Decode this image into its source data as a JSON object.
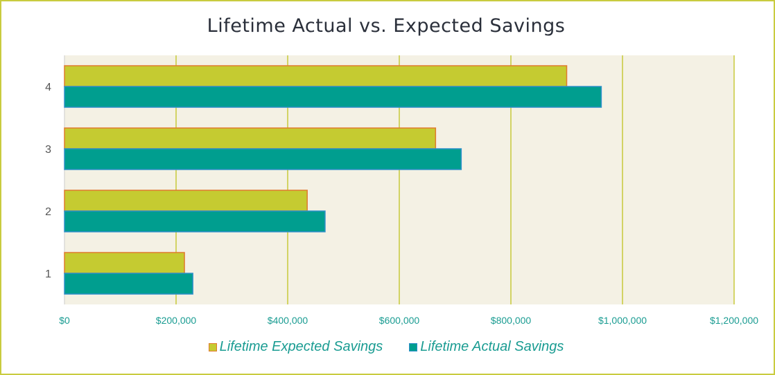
{
  "chart_data": {
    "type": "bar",
    "orientation": "horizontal",
    "title": "Lifetime Actual vs. Expected Savings",
    "xlabel": "",
    "ylabel": "",
    "categories": [
      "1",
      "2",
      "3",
      "4"
    ],
    "xlim": [
      0,
      1200000
    ],
    "x_ticks": [
      "$0",
      "$200,000",
      "$400,000",
      "$600,000",
      "$800,000",
      "$1,000,000",
      "$1,200,000"
    ],
    "series": [
      {
        "name": "Lifetime Expected Savings",
        "values": [
          215000,
          435000,
          665000,
          900000
        ],
        "fill": "#c5cb31",
        "stroke": "#e07a2e"
      },
      {
        "name": "Lifetime Actual Savings",
        "values": [
          230000,
          467000,
          711000,
          962000
        ],
        "fill": "#009e8f",
        "stroke": "#2e8fc9"
      }
    ],
    "grid": true,
    "legend": "bottom"
  },
  "colors": {
    "frame": "#c9cc3f",
    "plot_bg": "#f4f1e4",
    "gridline": "#c7c93a",
    "tick_text_x": "#1a9c92",
    "tick_text_y": "#555555",
    "title_text": "#2a2f3a"
  }
}
